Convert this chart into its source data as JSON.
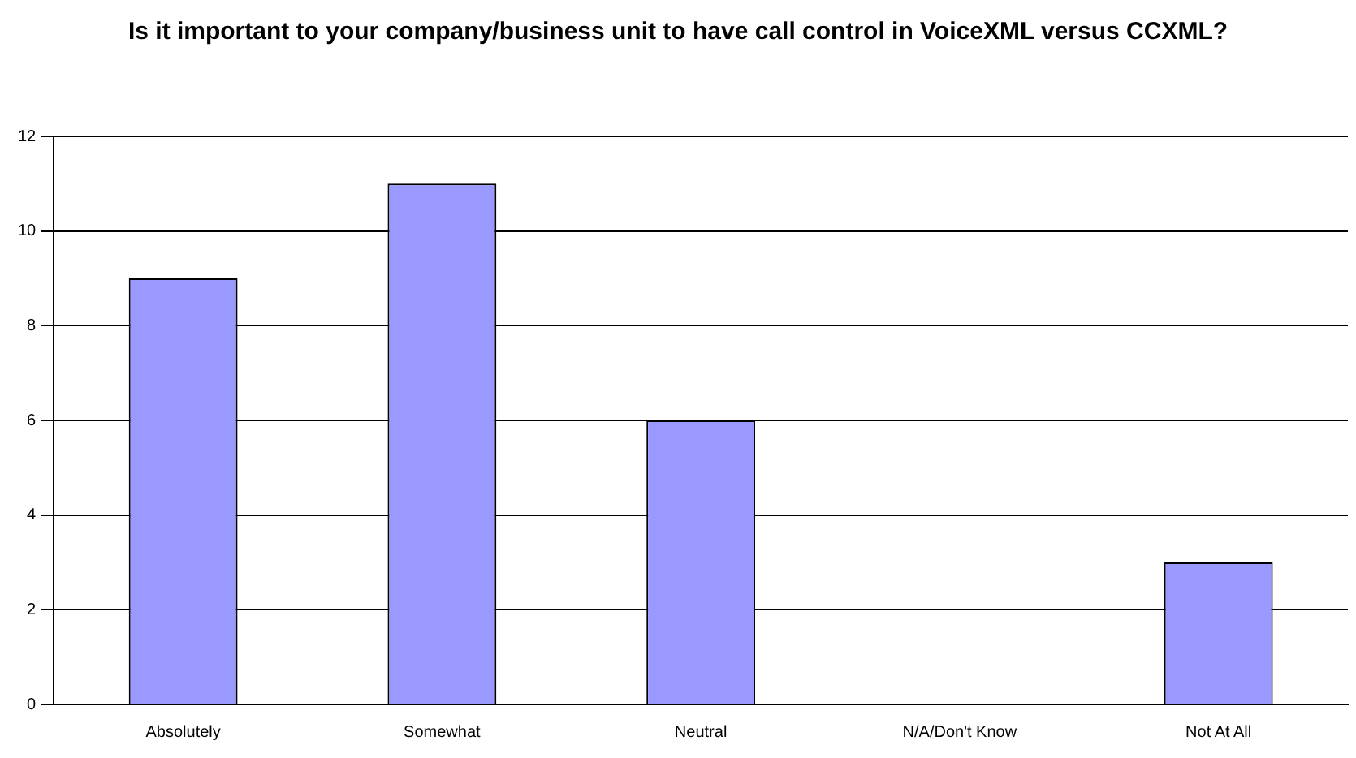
{
  "chart_data": {
    "type": "bar",
    "title": "Is it important to your company/business unit to have call control in VoiceXML versus CCXML?",
    "categories": [
      "Absolutely",
      "Somewhat",
      "Neutral",
      "N/A/Don't Know",
      "Not At All"
    ],
    "values": [
      9,
      11,
      6,
      0,
      3
    ],
    "color": "#9999ff",
    "ylim": [
      0,
      12
    ],
    "yticks": [
      0,
      2,
      4,
      6,
      8,
      10,
      12
    ],
    "grid": "y",
    "legend": false
  }
}
